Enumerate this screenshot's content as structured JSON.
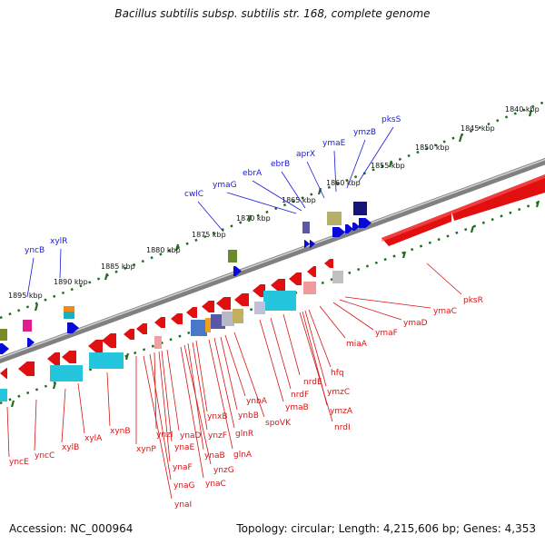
{
  "title": "Bacillus subtilis subsp. subtilis str. 168, complete genome",
  "footer": {
    "accession": "Accession: NC_000964",
    "summary": "Topology: circular; Length: 4,215,606 bp; Genes: 4,353"
  },
  "ruler_labels": [
    "1840 kbp",
    "1845 kbp",
    "1850 kbp",
    "1855 kbp",
    "1860 kbp",
    "1865 kbp",
    "1870 kbp",
    "1875 kbp",
    "1880 kbp",
    "1885 kbp",
    "1890 kbp",
    "1895 kbp"
  ],
  "colors": {
    "forward_label": "#1a1ad8",
    "reverse_label": "#d81414",
    "backbone": "#808080",
    "tick": "#1e6e1e"
  },
  "forward_genes": [
    "pksS",
    "ymzB",
    "ymaE",
    "aprX",
    "ebrB",
    "ebrA",
    "ymaG",
    "cwlC",
    "xylR",
    "yncB"
  ],
  "reverse_genes": [
    "pksR",
    "ymaC",
    "ymaD",
    "ymaF",
    "miaA",
    "hfq",
    "ymzC",
    "ymzA",
    "nrdI",
    "nrdE",
    "nrdF",
    "ymaB",
    "spoVK",
    "ynbA",
    "ynbB",
    "glnR",
    "glnA",
    "ynxB",
    "ynzF",
    "ynaB",
    "ynzG",
    "ynaC",
    "ynaD",
    "ynzI",
    "ynaE",
    "ynaF",
    "ynaG",
    "ynaI",
    "xynP",
    "xynB",
    "xylA",
    "xylB",
    "yncC",
    "yncE"
  ]
}
